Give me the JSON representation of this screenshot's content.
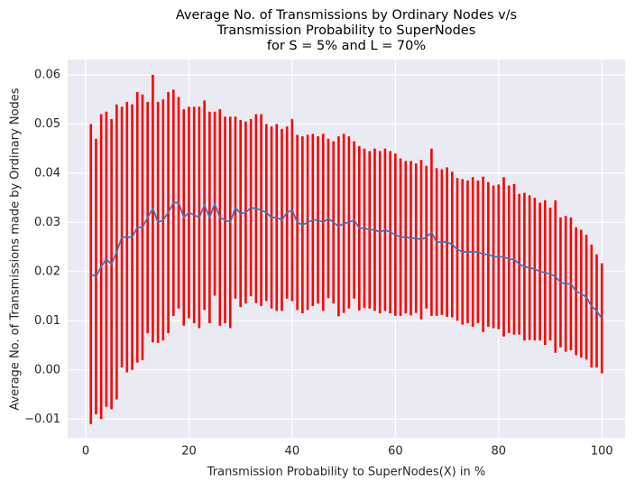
{
  "chart_data": {
    "type": "errorbar",
    "title": [
      "Average No. of Transmissions by Ordinary Nodes v/s",
      "Transmission Probability to SuperNodes",
      "for S = 5% and L = 70%"
    ],
    "x_label": "Transmission Probability to SuperNodes(X) in %",
    "y_label": "Average No. of Transmissions made by Ordinary Nodes",
    "x": [
      1,
      2,
      3,
      4,
      5,
      6,
      7,
      8,
      9,
      10,
      11,
      12,
      13,
      14,
      15,
      16,
      17,
      18,
      19,
      20,
      21,
      22,
      23,
      24,
      25,
      26,
      27,
      28,
      29,
      30,
      31,
      32,
      33,
      34,
      35,
      36,
      37,
      38,
      39,
      40,
      41,
      42,
      43,
      44,
      45,
      46,
      47,
      48,
      49,
      50,
      51,
      52,
      53,
      54,
      55,
      56,
      57,
      58,
      59,
      60,
      61,
      62,
      63,
      64,
      65,
      66,
      67,
      68,
      69,
      70,
      71,
      72,
      73,
      74,
      75,
      76,
      77,
      78,
      79,
      80,
      81,
      82,
      83,
      84,
      85,
      86,
      87,
      88,
      89,
      90,
      91,
      92,
      93,
      94,
      95,
      96,
      97,
      98,
      99,
      100
    ],
    "series": [
      {
        "color": "#4c72b0",
        "error_color": "#ff0000",
        "values": [
          0.0195,
          0.019,
          0.021,
          0.0225,
          0.0215,
          0.024,
          0.027,
          0.027,
          0.027,
          0.029,
          0.029,
          0.031,
          0.0328,
          0.03,
          0.0305,
          0.032,
          0.034,
          0.034,
          0.031,
          0.032,
          0.0315,
          0.031,
          0.0335,
          0.031,
          0.0338,
          0.031,
          0.0305,
          0.03,
          0.033,
          0.0318,
          0.032,
          0.033,
          0.0328,
          0.0325,
          0.032,
          0.031,
          0.031,
          0.0305,
          0.032,
          0.0325,
          0.03,
          0.0295,
          0.03,
          0.0305,
          0.0305,
          0.03,
          0.0308,
          0.03,
          0.0292,
          0.0298,
          0.03,
          0.0305,
          0.0288,
          0.0288,
          0.0285,
          0.0285,
          0.028,
          0.0285,
          0.028,
          0.0275,
          0.027,
          0.027,
          0.0268,
          0.0268,
          0.0265,
          0.027,
          0.028,
          0.026,
          0.026,
          0.026,
          0.0255,
          0.0245,
          0.024,
          0.024,
          0.024,
          0.024,
          0.0235,
          0.0235,
          0.023,
          0.023,
          0.023,
          0.0225,
          0.0225,
          0.0215,
          0.021,
          0.0208,
          0.0205,
          0.02,
          0.0198,
          0.0195,
          0.019,
          0.0178,
          0.0175,
          0.0175,
          0.016,
          0.0155,
          0.0148,
          0.013,
          0.012,
          0.0105
        ],
        "errors": [
          0.0305,
          0.028,
          0.031,
          0.03,
          0.0295,
          0.03,
          0.0265,
          0.0275,
          0.027,
          0.0275,
          0.027,
          0.0235,
          0.0272,
          0.0245,
          0.0245,
          0.0245,
          0.023,
          0.0215,
          0.022,
          0.0215,
          0.022,
          0.0225,
          0.0213,
          0.0215,
          0.0187,
          0.022,
          0.021,
          0.0215,
          0.0185,
          0.019,
          0.0185,
          0.018,
          0.0192,
          0.0195,
          0.018,
          0.0185,
          0.019,
          0.0185,
          0.0175,
          0.0185,
          0.0178,
          0.018,
          0.0178,
          0.0175,
          0.017,
          0.018,
          0.0162,
          0.0165,
          0.0183,
          0.0182,
          0.0175,
          0.016,
          0.0167,
          0.0162,
          0.016,
          0.0165,
          0.0165,
          0.0165,
          0.0165,
          0.0165,
          0.016,
          0.0155,
          0.0157,
          0.0152,
          0.0162,
          0.0145,
          0.017,
          0.015,
          0.0148,
          0.0152,
          0.0148,
          0.0145,
          0.0148,
          0.0145,
          0.0152,
          0.0145,
          0.0158,
          0.0147,
          0.0145,
          0.0147,
          0.0162,
          0.015,
          0.0153,
          0.0143,
          0.015,
          0.0147,
          0.0145,
          0.014,
          0.0147,
          0.0135,
          0.0155,
          0.0132,
          0.0138,
          0.0135,
          0.013,
          0.013,
          0.0127,
          0.0125,
          0.0115,
          0.0112
        ]
      }
    ],
    "xlim": [
      -3.5,
      104.5
    ],
    "ylim": [
      -0.0138,
      0.0631
    ],
    "xticks": [
      0,
      20,
      40,
      60,
      80,
      100
    ],
    "yticks": [
      {
        "value": -0.01,
        "label": "−0.01"
      },
      {
        "value": 0,
        "label": "0.00"
      },
      0.01,
      0.02,
      0.03,
      0.04,
      0.05,
      0.06
    ],
    "grid": true
  }
}
